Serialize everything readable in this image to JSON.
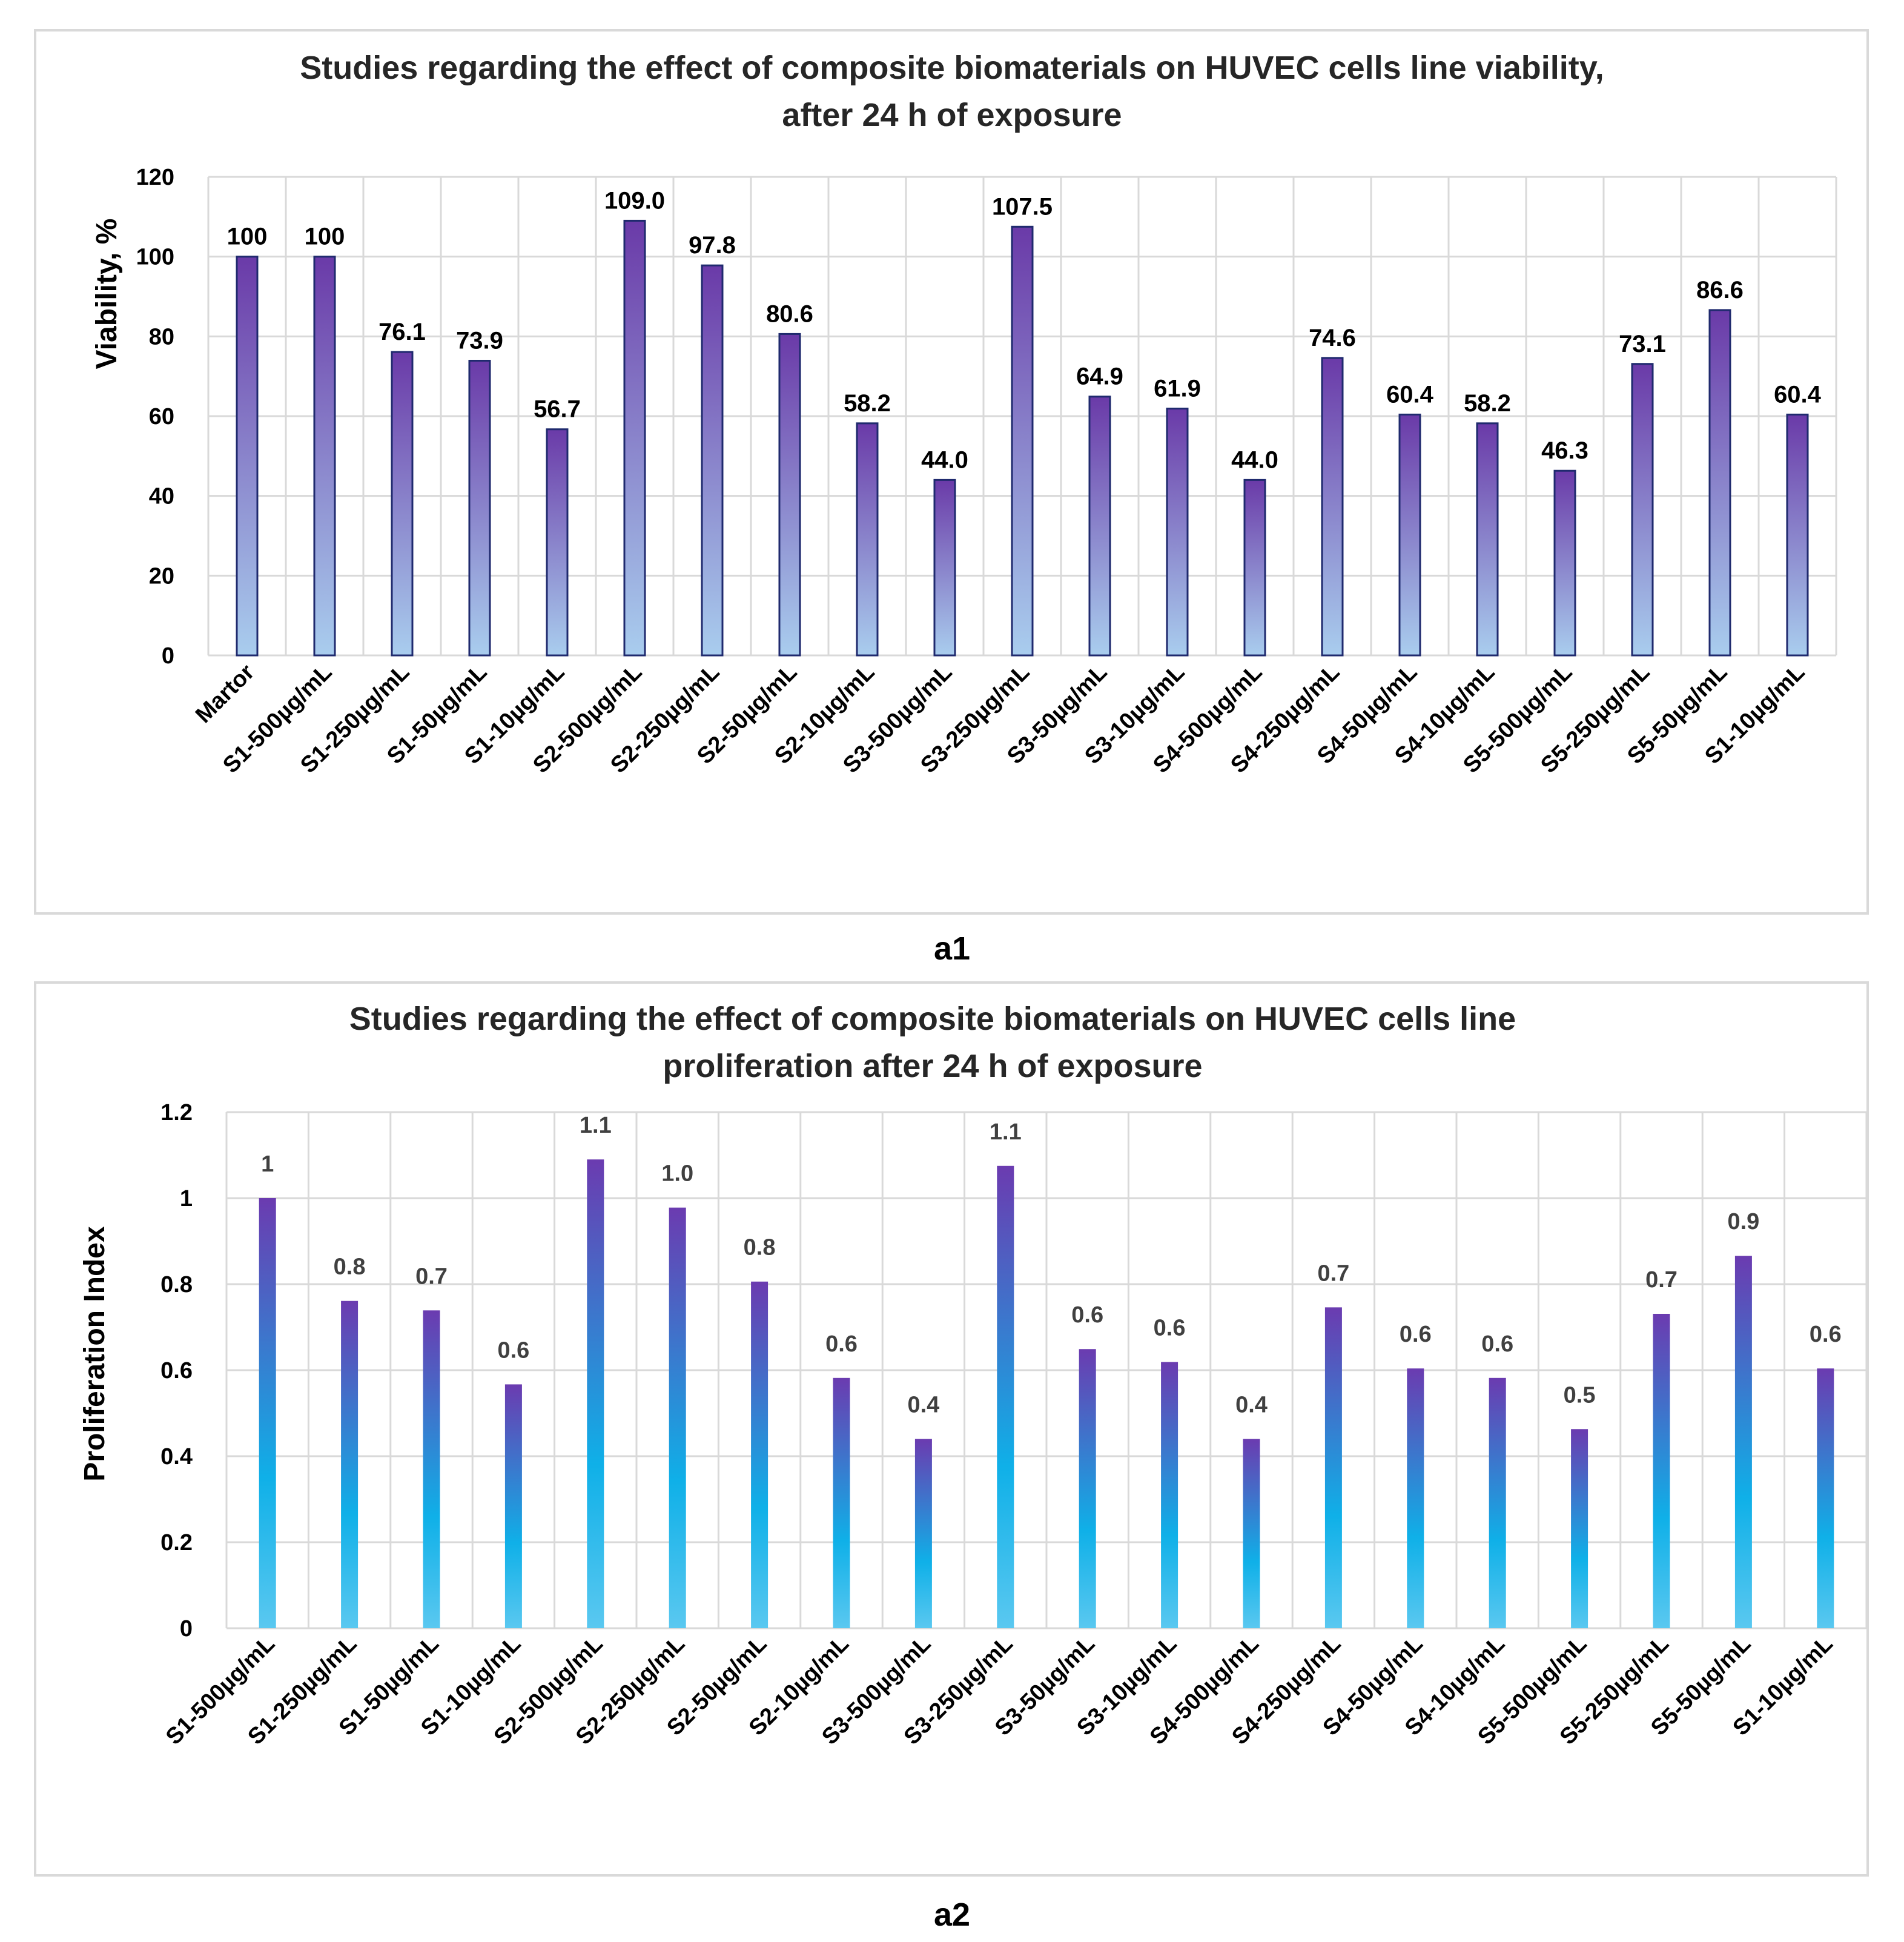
{
  "chart_data": [
    {
      "type": "bar",
      "title": "Studies regarding the effect of composite biomaterials on HUVEC cells line viability,",
      "subtitle": "after 24 h of exposure",
      "xlabel": "",
      "ylabel": "Viability, %",
      "ylim": [
        0,
        120
      ],
      "yticks": [
        "0",
        "20",
        "40",
        "60",
        "80",
        "100",
        "120"
      ],
      "grid": true,
      "legend": "none",
      "categories": [
        "Martor",
        "S1-500µg/mL",
        "S1-250µg/mL",
        "S1-50µg/mL",
        "S1-10µg/mL",
        "S2-500µg/mL",
        "S2-250µg/mL",
        "S2-50µg/mL",
        "S2-10µg/mL",
        "S3-500µg/mL",
        "S3-250µg/mL",
        "S3-50µg/mL",
        "S3-10µg/mL",
        "S4-500µg/mL",
        "S4-250µg/mL",
        "S4-50µg/mL",
        "S4-10µg/mL",
        "S5-500µg/mL",
        "S5-250µg/mL",
        "S5-50µg/mL",
        "S1-10µg/mL"
      ],
      "values": [
        100,
        100,
        76.1,
        73.9,
        56.7,
        109.0,
        97.8,
        80.6,
        58.2,
        44.0,
        107.5,
        64.9,
        61.9,
        44.0,
        74.6,
        60.4,
        58.2,
        46.3,
        73.1,
        86.6,
        60.4
      ],
      "labels": [
        "100",
        "100",
        "76.1",
        "73.9",
        "56.7",
        "109.0",
        "97.8",
        "80.6",
        "58.2",
        "44.0",
        "107.5",
        "64.9",
        "61.9",
        "44.0",
        "74.6",
        "60.4",
        "58.2",
        "46.3",
        "73.1",
        "86.6",
        "60.4"
      ],
      "colors": {
        "top": "#6a3aa8",
        "bottom": "#a9cdee",
        "edge": "#1f2a6e"
      }
    },
    {
      "type": "bar",
      "title": "Studies regarding the effect of composite biomaterials on HUVEC cells line",
      "subtitle": "proliferation after 24 h of exposure",
      "xlabel": "",
      "ylabel": "Proliferation Index",
      "ylim": [
        0,
        1.2
      ],
      "yticks": [
        "0",
        "0.2",
        "0.4",
        "0.6",
        "0.8",
        "1",
        "1.2"
      ],
      "grid": true,
      "legend": "none",
      "categories": [
        "S1-500µg/mL",
        "S1-250µg/mL",
        "S1-50µg/mL",
        "S1-10µg/mL",
        "S2-500µg/mL",
        "S2-250µg/mL",
        "S2-50µg/mL",
        "S2-10µg/mL",
        "S3-500µg/mL",
        "S3-250µg/mL",
        "S3-50µg/mL",
        "S3-10µg/mL",
        "S4-500µg/mL",
        "S4-250µg/mL",
        "S4-50µg/mL",
        "S4-10µg/mL",
        "S5-500µg/mL",
        "S5-250µg/mL",
        "S5-50µg/mL",
        "S1-10µg/mL"
      ],
      "values": [
        1.0,
        0.761,
        0.739,
        0.567,
        1.09,
        0.978,
        0.806,
        0.582,
        0.44,
        1.075,
        0.649,
        0.619,
        0.44,
        0.746,
        0.604,
        0.582,
        0.463,
        0.731,
        0.866,
        0.604
      ],
      "labels": [
        "1",
        "0.8",
        "0.7",
        "0.6",
        "1.1",
        "1.0",
        "0.8",
        "0.6",
        "0.4",
        "1.1",
        "0.6",
        "0.6",
        "0.4",
        "0.7",
        "0.6",
        "0.6",
        "0.5",
        "0.7",
        "0.9",
        "0.6"
      ],
      "colors": {
        "top": "#6b3bb0",
        "mid": "#0fb0e8",
        "bottom": "#5ac8f0",
        "edge": "none"
      }
    }
  ],
  "panel_labels": {
    "a1": "a1",
    "a2": "a2"
  }
}
